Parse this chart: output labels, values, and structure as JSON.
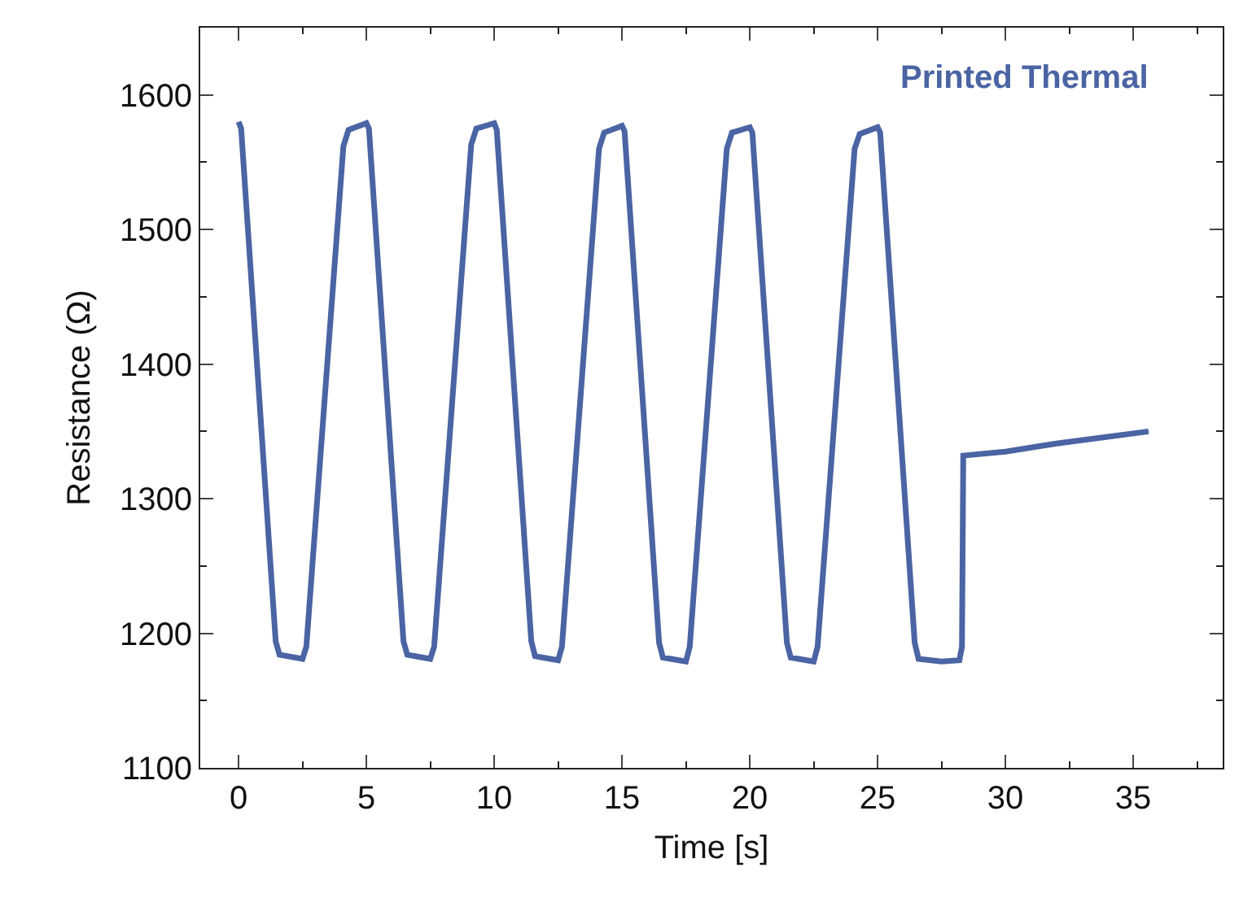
{
  "chart_data": {
    "type": "line",
    "xlabel": "Time [s]",
    "ylabel": "Resistance (Ω)",
    "annotations": [
      "Printed Thermal"
    ],
    "series": [
      {
        "color": "#4a64a4",
        "x": [
          0,
          0.1,
          1.45,
          1.6,
          2.5,
          2.65,
          4.1,
          4.3,
          5.0,
          5.1,
          6.45,
          6.6,
          7.5,
          7.65,
          9.1,
          9.3,
          10.0,
          10.1,
          11.45,
          11.6,
          12.5,
          12.65,
          14.1,
          14.3,
          15.0,
          15.1,
          16.45,
          16.6,
          17.5,
          17.65,
          19.1,
          19.3,
          20.0,
          20.1,
          21.45,
          21.6,
          22.5,
          22.65,
          24.1,
          24.3,
          25.0,
          25.1,
          26.45,
          26.6,
          27.5,
          28.2,
          28.3,
          28.35,
          30,
          32,
          34,
          35.6
        ],
        "values": [
          1580,
          1575,
          1194,
          1184,
          1181,
          1190,
          1562,
          1574,
          1579,
          1575,
          1194,
          1184,
          1181,
          1190,
          1563,
          1575,
          1579,
          1574,
          1194,
          1183,
          1180,
          1190,
          1560,
          1572,
          1577,
          1573,
          1193,
          1182,
          1179,
          1190,
          1560,
          1572,
          1576,
          1572,
          1193,
          1182,
          1179,
          1190,
          1560,
          1571,
          1576,
          1572,
          1193,
          1181,
          1179,
          1180,
          1190,
          1332,
          1335,
          1341,
          1346,
          1350
        ]
      }
    ],
    "xlim": [
      -1.5,
      38.5
    ],
    "xticks": [
      0,
      5,
      10,
      15,
      20,
      25,
      30,
      35
    ],
    "ylim": [
      1100,
      1650
    ],
    "yticks": [
      1100,
      1200,
      1300,
      1400,
      1500,
      1600
    ],
    "marker": "none",
    "line_style": "solid"
  }
}
